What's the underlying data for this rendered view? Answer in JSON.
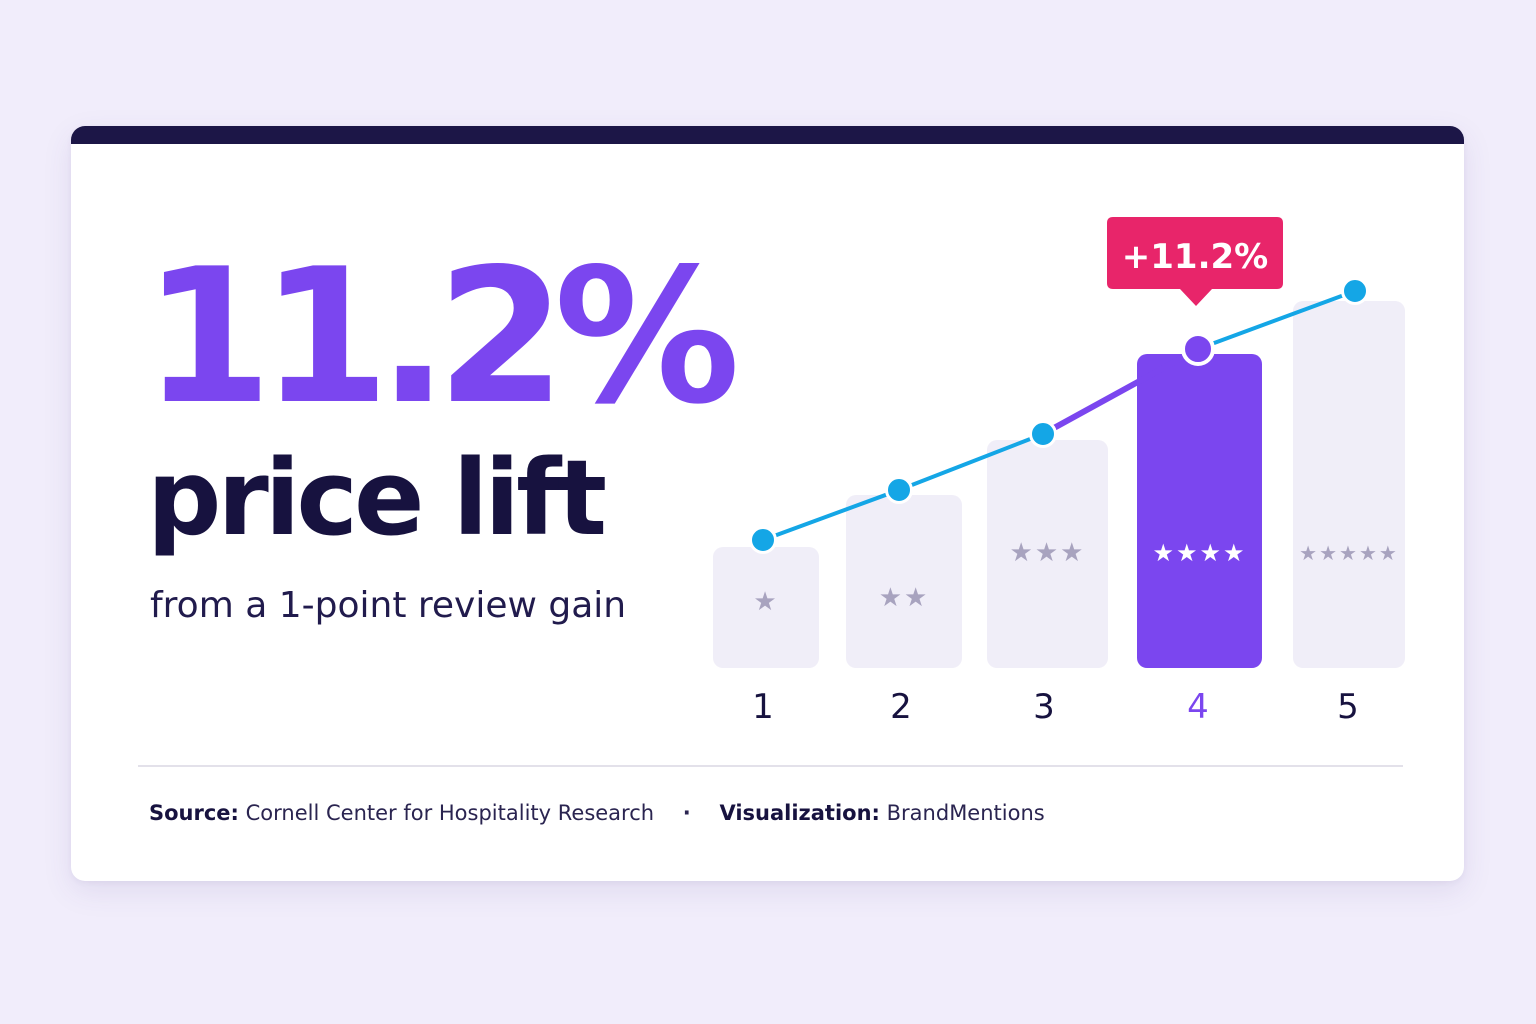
{
  "headline": {
    "big_number": "11.2%",
    "title": "price lift",
    "subtitle": "from a 1-point review gain"
  },
  "footer": {
    "source_label": "Source:",
    "source_value": "Cornell Center for Hospitality Research",
    "separator": "·",
    "viz_label": "Visualization:",
    "viz_value": "BrandMentions"
  },
  "colors": {
    "accent": "#7b46ef",
    "navy": "#17123f",
    "line": "#14a6e6",
    "callout": "#e8256a",
    "bar_muted": "#f0eef8",
    "star_muted": "#a8a3bf"
  },
  "chart_data": {
    "type": "bar",
    "categories": [
      "1",
      "2",
      "3",
      "4",
      "5"
    ],
    "values": [
      1,
      2,
      3,
      4,
      5
    ],
    "stars": [
      "★",
      "★★",
      "★★★",
      "★★★★",
      "★★★★★"
    ],
    "highlight_index": 3,
    "line_series": {
      "values": [
        1,
        2,
        3,
        4,
        5
      ]
    },
    "callout": {
      "text": "+11.2%",
      "index": 3
    },
    "title": "",
    "xlabel": "",
    "ylabel": ""
  }
}
